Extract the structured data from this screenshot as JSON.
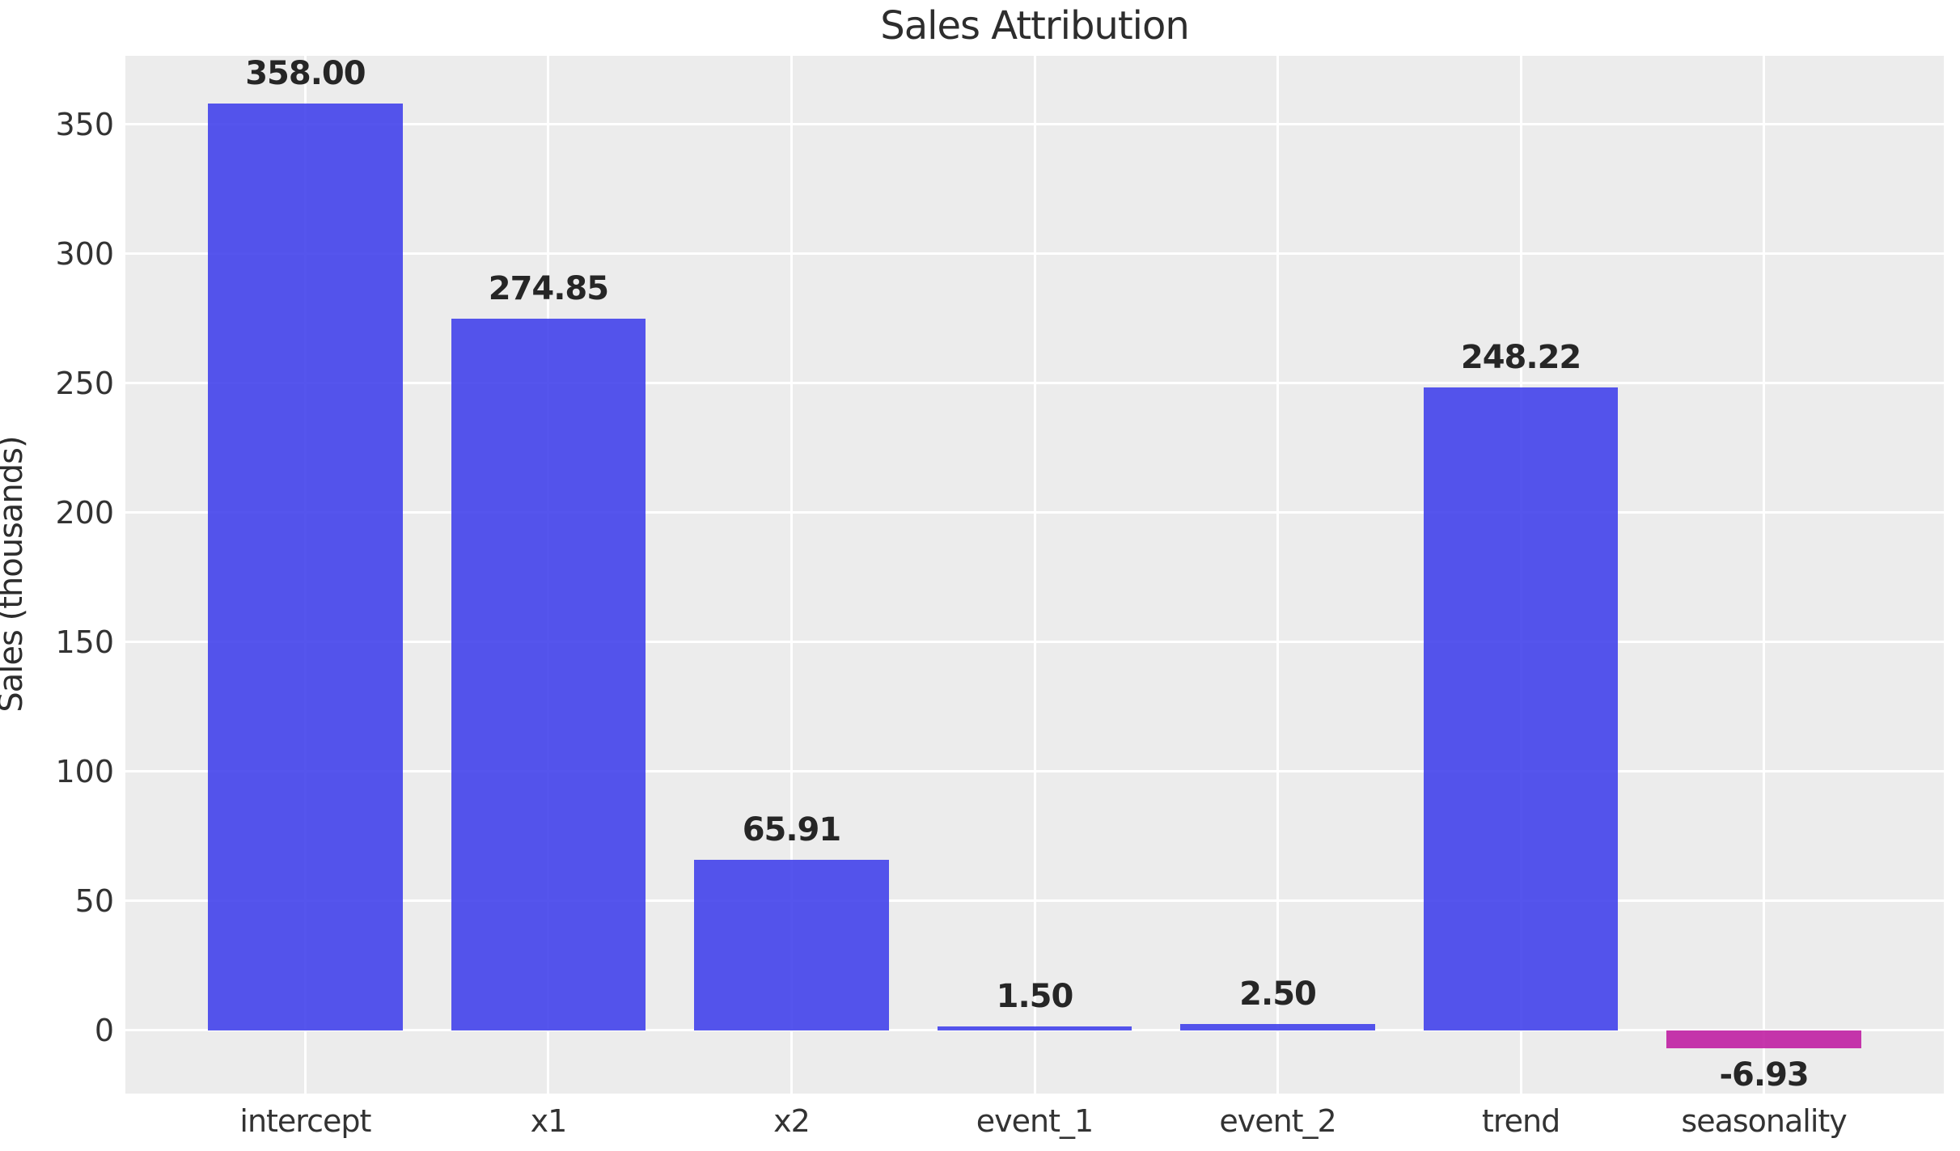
{
  "chart_data": {
    "type": "bar",
    "title": "Sales Attribution",
    "xlabel": "",
    "ylabel": "Sales (thousands)",
    "categories": [
      "intercept",
      "x1",
      "x2",
      "event_1",
      "event_2",
      "trend",
      "seasonality"
    ],
    "values": [
      358.0,
      274.85,
      65.91,
      1.5,
      2.5,
      248.22,
      -6.93
    ],
    "value_labels": [
      "358.00",
      "274.85",
      "65.91",
      "1.50",
      "2.50",
      "248.22",
      "-6.93"
    ],
    "yticks": [
      0,
      50,
      100,
      150,
      200,
      250,
      300,
      350
    ],
    "ylim": [
      -24.5,
      376.5
    ],
    "bar_width_fraction": 0.8,
    "grid": "on",
    "legend": "none",
    "colors": {
      "positive_bar": "#4242EB",
      "negative_bar": "#C020A3",
      "bar_alpha": 0.9,
      "plot_background": "#ECECEC",
      "figure_background": "#FFFFFF",
      "gridline": "#FFFFFF",
      "title_text": "#2D2D2D",
      "tick_text": "#333333",
      "value_text": "#262626"
    }
  }
}
